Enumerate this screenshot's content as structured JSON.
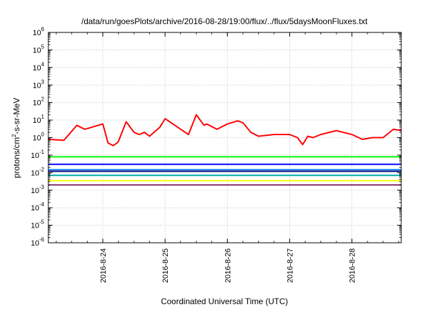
{
  "chart_data": {
    "type": "line",
    "title": "/data/run/goesPlots/archive/2016-08-28/19:00/flux/../flux/5daysMoonFluxes.txt",
    "xlabel": "Coordinated Universal Time (UTC)",
    "ylabel": {
      "base": "protons/cm",
      "sup": "2",
      "rest": "-s-sr-MeV"
    },
    "yscale": "log",
    "ylim": [
      1e-06,
      1000000.0
    ],
    "y_ticks": [
      {
        "base": "10",
        "exp": "6",
        "value": 1000000.0
      },
      {
        "base": "10",
        "exp": "5",
        "value": 100000.0
      },
      {
        "base": "10",
        "exp": "4",
        "value": 10000.0
      },
      {
        "base": "10",
        "exp": "3",
        "value": 1000.0
      },
      {
        "base": "10",
        "exp": "2",
        "value": 100.0
      },
      {
        "base": "10",
        "exp": "1",
        "value": 10.0
      },
      {
        "base": "10",
        "exp": "0",
        "value": 1
      },
      {
        "base": "10",
        "exp": "-1",
        "value": 0.1
      },
      {
        "base": "10",
        "exp": "-2",
        "value": 0.01
      },
      {
        "base": "10",
        "exp": "-3",
        "value": 0.001
      },
      {
        "base": "10",
        "exp": "-4",
        "value": 0.0001
      },
      {
        "base": "10",
        "exp": "-5",
        "value": 1e-05
      },
      {
        "base": "10",
        "exp": "-6",
        "value": 1e-06
      }
    ],
    "xlim": [
      "2016-08-23 03:00",
      "2016-08-28 19:00"
    ],
    "x_ticks": [
      "2016-8-24",
      "2016-8-25",
      "2016-8-26",
      "2016-8-27",
      "2016-8-28"
    ],
    "grid": true,
    "series": [
      {
        "color": "#ff0000",
        "x": [
          "2016-08-23 03:00",
          "2016-08-23 09:00",
          "2016-08-23 14:00",
          "2016-08-23 17:00",
          "2016-08-23 20:00",
          "2016-08-24 00:00",
          "2016-08-24 02:00",
          "2016-08-24 04:00",
          "2016-08-24 05:30",
          "2016-08-24 06:00",
          "2016-08-24 09:00",
          "2016-08-24 12:00",
          "2016-08-24 14:00",
          "2016-08-24 16:00",
          "2016-08-24 18:00",
          "2016-08-24 22:00",
          "2016-08-25 00:00",
          "2016-08-25 03:00",
          "2016-08-25 06:00",
          "2016-08-25 09:00",
          "2016-08-25 12:00",
          "2016-08-25 15:00",
          "2016-08-25 16:00",
          "2016-08-25 20:00",
          "2016-08-26 00:00",
          "2016-08-26 04:00",
          "2016-08-26 06:00",
          "2016-08-26 09:00",
          "2016-08-26 12:00",
          "2016-08-26 18:00",
          "2016-08-27 00:00",
          "2016-08-27 03:00",
          "2016-08-27 05:00",
          "2016-08-27 07:00",
          "2016-08-27 09:00",
          "2016-08-27 12:00",
          "2016-08-27 18:00",
          "2016-08-28 00:00",
          "2016-08-28 04:00",
          "2016-08-28 08:00",
          "2016-08-28 12:00",
          "2016-08-28 16:00",
          "2016-08-28 19:00"
        ],
        "values": [
          0.8,
          0.7,
          5,
          3,
          4,
          6,
          0.5,
          0.35,
          0.5,
          0.6,
          8,
          2,
          1.5,
          2,
          1.2,
          4,
          12,
          6,
          3,
          1.5,
          20,
          5,
          6,
          3,
          6,
          9,
          7,
          2,
          1.2,
          1.5,
          1.5,
          1.0,
          0.4,
          1.2,
          1.0,
          1.5,
          2.5,
          1.5,
          0.8,
          1.0,
          1.0,
          3,
          2.5
        ]
      },
      {
        "color": "#00ff00",
        "x": [
          "2016-08-23 03:00",
          "2016-08-28 19:00"
        ],
        "values": [
          0.08,
          0.08
        ]
      },
      {
        "color": "#0000ff",
        "x": [
          "2016-08-23 03:00",
          "2016-08-28 19:00"
        ],
        "values": [
          0.03,
          0.03
        ]
      },
      {
        "color": "#1e90ff",
        "x": [
          "2016-08-23 03:00",
          "2016-08-28 19:00"
        ],
        "values": [
          0.015,
          0.015
        ]
      },
      {
        "color": "#000080",
        "x": [
          "2016-08-23 03:00",
          "2016-08-28 19:00"
        ],
        "values": [
          0.012,
          0.012
        ]
      },
      {
        "color": "#00a8a8",
        "x": [
          "2016-08-23 03:00",
          "2016-08-28 19:00"
        ],
        "values": [
          0.007,
          0.007
        ]
      },
      {
        "color": "#ffff00",
        "x": [
          "2016-08-23 03:00",
          "2016-08-28 19:00"
        ],
        "values": [
          0.0035,
          0.0035
        ]
      },
      {
        "color": "#8b2f6b",
        "x": [
          "2016-08-23 03:00",
          "2016-08-28 19:00"
        ],
        "values": [
          0.002,
          0.002
        ]
      }
    ]
  }
}
